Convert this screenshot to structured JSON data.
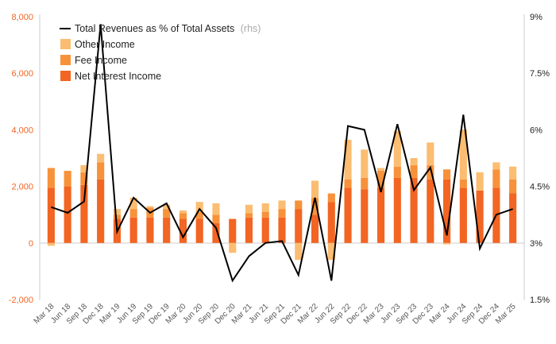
{
  "chart_data": {
    "type": "bar",
    "stacked": true,
    "categories": [
      "Mar 18",
      "Jun 18",
      "Sep 18",
      "Dec 18",
      "Mar 19",
      "Jun 19",
      "Sep 19",
      "Dec 19",
      "Mar 20",
      "Jun 20",
      "Sep 20",
      "Dec 20",
      "Mar 21",
      "Jun 21",
      "Sep 21",
      "Dec 21",
      "Mar 22",
      "Jun 22",
      "Sep 22",
      "Dec 22",
      "Mar 23",
      "Jun 23",
      "Sep 23",
      "Dec 23",
      "Mar 24",
      "Jun 24",
      "Sep 24",
      "Dec 24",
      "Mar 25"
    ],
    "series": [
      {
        "name": "Net Interest Income",
        "color": "#f26522",
        "values": [
          1950,
          2000,
          2050,
          2250,
          850,
          900,
          900,
          900,
          850,
          850,
          700,
          850,
          900,
          900,
          900,
          1200,
          1000,
          1450,
          1950,
          1900,
          1950,
          2300,
          2300,
          2250,
          2250,
          1950,
          1850,
          1950,
          1750
        ]
      },
      {
        "name": "Fee Income",
        "color": "#f7923a",
        "values": [
          700,
          550,
          450,
          600,
          150,
          300,
          350,
          300,
          200,
          250,
          300,
          0,
          150,
          200,
          300,
          300,
          600,
          300,
          300,
          400,
          600,
          400,
          450,
          500,
          350,
          300,
          0,
          650,
          500
        ]
      },
      {
        "name": "Other Income",
        "color": "#fbbd72",
        "values": [
          -100,
          0,
          250,
          300,
          200,
          400,
          50,
          150,
          100,
          350,
          400,
          -350,
          300,
          300,
          300,
          -600,
          600,
          -600,
          1400,
          1000,
          100,
          1250,
          250,
          800,
          -50,
          1750,
          650,
          250,
          450
        ]
      }
    ],
    "line_series": {
      "name": "Total Revenues as % of Total Assets",
      "name_suffix": "(rhs)",
      "color": "#000000",
      "axis": "right",
      "values": [
        3.95,
        3.8,
        4.1,
        8.8,
        3.3,
        4.2,
        3.8,
        4.05,
        3.15,
        3.9,
        3.4,
        2.0,
        2.65,
        3.0,
        3.05,
        2.15,
        4.2,
        2.0,
        6.1,
        6.0,
        4.35,
        6.15,
        4.4,
        5.0,
        3.2,
        6.4,
        2.85,
        3.75,
        3.9
      ]
    },
    "ylim": [
      -2000,
      8000
    ],
    "yticks": [
      "-2,000",
      "0",
      "2,000",
      "4,000",
      "6,000",
      "8,000"
    ],
    "y2lim": [
      1.5,
      9
    ],
    "y2ticks": [
      "1.5%",
      "3%",
      "4.5%",
      "6%",
      "7.5%",
      "9%"
    ],
    "legend_position": "top-left",
    "grid": false,
    "xlabel": "",
    "ylabel": ""
  }
}
